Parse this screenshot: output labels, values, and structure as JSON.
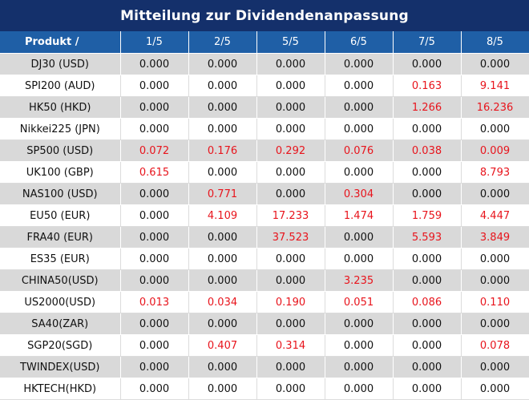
{
  "title": "Mitteilung zur Dividendenanpassung",
  "colors": {
    "header_bg": "#14306b",
    "column_header_bg": "#1f5fa6",
    "row_alt_bg": "#d9d9d9",
    "positive_value": "#e8141c"
  },
  "table": {
    "product_header": "Produkt /",
    "dates": [
      "1/5",
      "2/5",
      "5/5",
      "6/5",
      "7/5",
      "8/5"
    ],
    "rows": [
      {
        "product": "DJ30 (USD)",
        "values": [
          "0.000",
          "0.000",
          "0.000",
          "0.000",
          "0.000",
          "0.000"
        ]
      },
      {
        "product": "SPI200 (AUD)",
        "values": [
          "0.000",
          "0.000",
          "0.000",
          "0.000",
          "0.163",
          "9.141"
        ]
      },
      {
        "product": "HK50 (HKD)",
        "values": [
          "0.000",
          "0.000",
          "0.000",
          "0.000",
          "1.266",
          "16.236"
        ]
      },
      {
        "product": "Nikkei225 (JPN)",
        "values": [
          "0.000",
          "0.000",
          "0.000",
          "0.000",
          "0.000",
          "0.000"
        ]
      },
      {
        "product": "SP500 (USD)",
        "values": [
          "0.072",
          "0.176",
          "0.292",
          "0.076",
          "0.038",
          "0.009"
        ]
      },
      {
        "product": "UK100 (GBP)",
        "values": [
          "0.615",
          "0.000",
          "0.000",
          "0.000",
          "0.000",
          "8.793"
        ]
      },
      {
        "product": "NAS100 (USD)",
        "values": [
          "0.000",
          "0.771",
          "0.000",
          "0.304",
          "0.000",
          "0.000"
        ]
      },
      {
        "product": "EU50 (EUR)",
        "values": [
          "0.000",
          "4.109",
          "17.233",
          "1.474",
          "1.759",
          "4.447"
        ]
      },
      {
        "product": "FRA40 (EUR)",
        "values": [
          "0.000",
          "0.000",
          "37.523",
          "0.000",
          "5.593",
          "3.849"
        ]
      },
      {
        "product": "ES35 (EUR)",
        "values": [
          "0.000",
          "0.000",
          "0.000",
          "0.000",
          "0.000",
          "0.000"
        ]
      },
      {
        "product": "CHINA50(USD)",
        "values": [
          "0.000",
          "0.000",
          "0.000",
          "3.235",
          "0.000",
          "0.000"
        ]
      },
      {
        "product": "US2000(USD)",
        "values": [
          "0.013",
          "0.034",
          "0.190",
          "0.051",
          "0.086",
          "0.110"
        ]
      },
      {
        "product": "SA40(ZAR)",
        "values": [
          "0.000",
          "0.000",
          "0.000",
          "0.000",
          "0.000",
          "0.000"
        ]
      },
      {
        "product": "SGP20(SGD)",
        "values": [
          "0.000",
          "0.407",
          "0.314",
          "0.000",
          "0.000",
          "0.078"
        ]
      },
      {
        "product": "TWINDEX(USD)",
        "values": [
          "0.000",
          "0.000",
          "0.000",
          "0.000",
          "0.000",
          "0.000"
        ]
      },
      {
        "product": "HKTECH(HKD)",
        "values": [
          "0.000",
          "0.000",
          "0.000",
          "0.000",
          "0.000",
          "0.000"
        ]
      }
    ]
  }
}
